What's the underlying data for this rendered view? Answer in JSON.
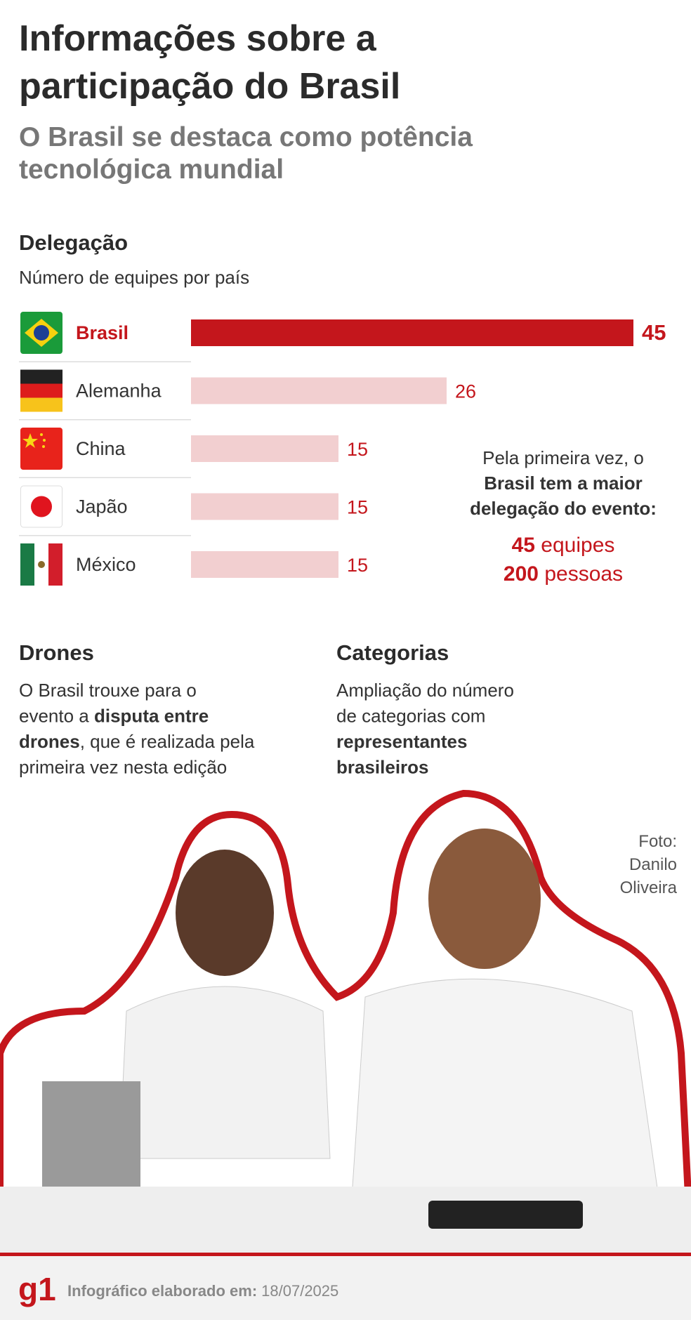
{
  "header": {
    "title_lines": [
      "Informações sobre a",
      "participação do Brasil"
    ],
    "subtitle_lines": [
      "O Brasil se destaca como potência",
      "tecnológica mundial"
    ]
  },
  "chart_data": {
    "type": "bar",
    "orientation": "horizontal",
    "title": "Delegação",
    "subtitle": "Número de equipes por país",
    "categories": [
      "Brasil",
      "Alemanha",
      "China",
      "Japão",
      "México"
    ],
    "values": [
      45,
      26,
      15,
      15,
      15
    ],
    "colors": [
      "#c4161c",
      "#f2cfd0",
      "#f2cfd0",
      "#f2cfd0",
      "#f2cfd0"
    ],
    "label_colors": [
      "#c4161c",
      "#333333",
      "#333333",
      "#333333",
      "#333333"
    ],
    "bold": [
      true,
      false,
      false,
      false,
      false
    ]
  },
  "note": {
    "lines": [
      [
        {
          "text": "Pela primeira vez, o",
          "bold": false
        }
      ],
      [
        {
          "text": "Brasil tem a maior",
          "bold": true
        }
      ],
      [
        {
          "text": "delegação do evento:",
          "bold": true
        }
      ]
    ],
    "stats": [
      [
        {
          "text": "45",
          "bold": true
        },
        {
          "text": " equipes",
          "bold": false
        }
      ],
      [
        {
          "text": "200",
          "bold": true
        },
        {
          "text": " pessoas",
          "bold": false
        }
      ]
    ]
  },
  "drones": {
    "title": "Drones",
    "lines": [
      [
        {
          "text": "O  Brasil trouxe para o",
          "bold": false
        }
      ],
      [
        {
          "text": "evento a ",
          "bold": false
        },
        {
          "text": "disputa entre",
          "bold": true
        }
      ],
      [
        {
          "text": "drones",
          "bold": true
        },
        {
          "text": ", que é realizada pela",
          "bold": false
        }
      ],
      [
        {
          "text": "primeira vez nesta edição",
          "bold": false
        }
      ]
    ]
  },
  "categorias": {
    "title": "Categorias",
    "lines": [
      [
        {
          "text": "Ampliação do número",
          "bold": false
        }
      ],
      [
        {
          "text": "de categorias com",
          "bold": false
        }
      ],
      [
        {
          "text": "representantes",
          "bold": true
        }
      ],
      [
        {
          "text": "brasileiros",
          "bold": true
        }
      ]
    ]
  },
  "photo_credit": [
    "Foto:",
    "Danilo",
    "Oliveira"
  ],
  "footer": {
    "logo": "g1",
    "label": "Infográfico elaborado em:",
    "date": "18/07/2025"
  }
}
